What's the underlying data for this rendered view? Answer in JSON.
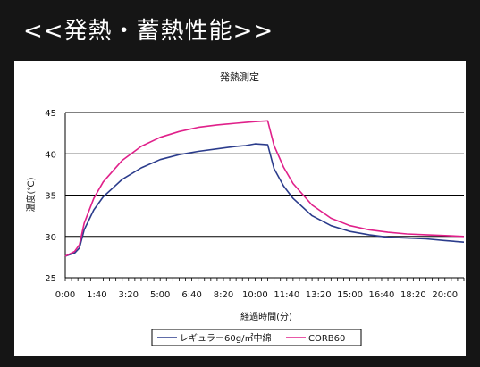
{
  "banner": {
    "title": "<<発熱・蓄熱性能>>"
  },
  "chart_data": {
    "type": "line",
    "title": "発熱測定",
    "xlabel": "経過時間(分)",
    "ylabel": "温度(℃)",
    "ylim": [
      25,
      45
    ],
    "yticks": [
      "25",
      "30",
      "35",
      "40",
      "45"
    ],
    "xlim": [
      0,
      1260
    ],
    "xticks": [
      "0:00",
      "1:40",
      "3:20",
      "5:00",
      "6:40",
      "8:20",
      "10:00",
      "11:40",
      "13:20",
      "15:00",
      "16:40",
      "18:20",
      "20:00"
    ],
    "grid": "horizontal",
    "legend_position": "bottom",
    "series": [
      {
        "name": "レギュラー60g/㎡中綿",
        "color": "#2b3c8c",
        "x": [
          0,
          30,
          45,
          60,
          90,
          120,
          180,
          240,
          300,
          360,
          420,
          480,
          540,
          570,
          600,
          640,
          660,
          690,
          720,
          780,
          840,
          900,
          960,
          1020,
          1080,
          1140,
          1200,
          1260
        ],
        "y": [
          27.6,
          28.0,
          28.6,
          30.8,
          33.2,
          34.8,
          36.9,
          38.3,
          39.3,
          39.9,
          40.3,
          40.6,
          40.9,
          41.0,
          41.2,
          41.1,
          38.2,
          36.1,
          34.6,
          32.5,
          31.3,
          30.6,
          30.2,
          29.9,
          29.8,
          29.7,
          29.5,
          29.3
        ]
      },
      {
        "name": "CORB60",
        "color": "#e0208a",
        "x": [
          0,
          30,
          45,
          60,
          90,
          120,
          180,
          240,
          300,
          360,
          420,
          480,
          540,
          570,
          600,
          640,
          660,
          690,
          720,
          780,
          840,
          900,
          960,
          1020,
          1080,
          1140,
          1200,
          1260
        ],
        "y": [
          27.6,
          28.2,
          29.0,
          31.6,
          34.6,
          36.6,
          39.2,
          40.9,
          42.0,
          42.7,
          43.2,
          43.5,
          43.7,
          43.8,
          43.9,
          44.0,
          41.0,
          38.4,
          36.4,
          33.8,
          32.2,
          31.3,
          30.8,
          30.5,
          30.3,
          30.2,
          30.1,
          30.0
        ]
      }
    ]
  }
}
